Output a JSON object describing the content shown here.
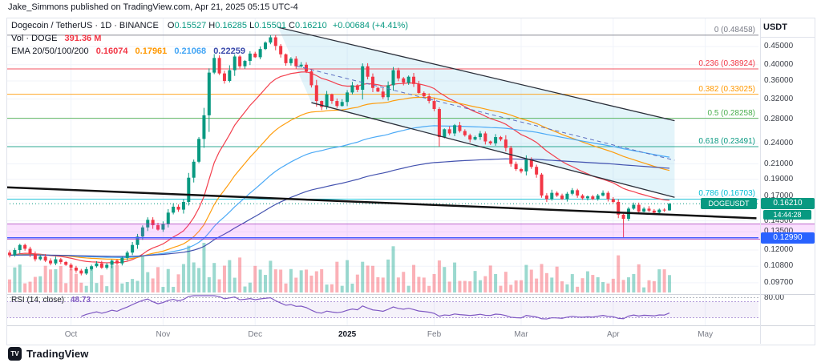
{
  "attribution": "Jake_Simmons published on TradingView.com, Apr 21, 2025 05:15 UTC-4",
  "header": {
    "symbol_title": "Dogecoin / TetherUS",
    "meta": "· 1D · BINANCE",
    "ohlc": {
      "o_label": "O",
      "o": "0.15527",
      "h_label": "H",
      "h": "0.16285",
      "l_label": "L",
      "l": "0.15501",
      "c_label": "C",
      "c": "0.16210",
      "change": "+0.00684 (+4.41%)"
    },
    "volume_label": "Vol · DOGE",
    "volume_value": "391.36 M",
    "ema_label": "EMA 20/50/100/200",
    "ema_values": [
      "0.16074",
      "0.17961",
      "0.21068",
      "0.22259"
    ]
  },
  "price_scale": {
    "currency": "USDT",
    "labels": [
      {
        "text": "0.45000",
        "price": 0.45
      },
      {
        "text": "0.40000",
        "price": 0.4
      },
      {
        "text": "0.36000",
        "price": 0.36
      },
      {
        "text": "0.32000",
        "price": 0.32
      },
      {
        "text": "0.28000",
        "price": 0.28
      },
      {
        "text": "0.24000",
        "price": 0.24
      },
      {
        "text": "0.21000",
        "price": 0.21
      },
      {
        "text": "0.19000",
        "price": 0.19
      },
      {
        "text": "0.17000",
        "price": 0.17
      },
      {
        "text": "0.14500",
        "price": 0.145
      },
      {
        "text": "0.13500",
        "price": 0.135
      },
      {
        "text": "0.12000",
        "price": 0.12
      },
      {
        "text": "0.10800",
        "price": 0.108
      },
      {
        "text": "0.09700",
        "price": 0.097
      }
    ],
    "last_price_badge": {
      "symbol": "DOGEUSDT",
      "price": "0.16210",
      "countdown": "14:44:28"
    },
    "support_badge": {
      "price": "0.12990"
    },
    "rsi_top_label": "80.00"
  },
  "fib_levels": [
    {
      "label": "0 (0.48458)",
      "price": 0.48458,
      "color": "#787b86"
    },
    {
      "label": "0.236 (0.38924)",
      "price": 0.38924,
      "color": "#f23645"
    },
    {
      "label": "0.382 (0.33025)",
      "price": 0.33025,
      "color": "#ff9800"
    },
    {
      "label": "0.5 (0.28258)",
      "price": 0.28258,
      "color": "#4caf50"
    },
    {
      "label": "0.618 (0.23491)",
      "price": 0.23491,
      "color": "#089981"
    },
    {
      "label": "0.786 (0.16703)",
      "price": 0.16703,
      "color": "#00bcd4"
    }
  ],
  "time_axis": [
    "Oct",
    "Nov",
    "Dec",
    "2025",
    "Feb",
    "Mar",
    "Apr",
    "May"
  ],
  "rsi_legend": {
    "label": "RSI (14, close)",
    "value": "48.73"
  },
  "watermark": {
    "text": "TradingView",
    "mark": "TV"
  },
  "chart_data": {
    "type": "candlestick+volume+rsi",
    "symbol": "DOGEUSDT",
    "exchange": "BINANCE",
    "interval": "1D",
    "x_range": [
      "late Sep 2024",
      "Apr 21 2025"
    ],
    "price_log_scale": {
      "top": 0.505,
      "bottom": 0.0925
    },
    "closes": [
      0.116,
      0.12,
      0.124,
      0.121,
      0.117,
      0.113,
      0.115,
      0.112,
      0.11,
      0.113,
      0.111,
      0.109,
      0.107,
      0.105,
      0.103,
      0.106,
      0.108,
      0.11,
      0.107,
      0.109,
      0.112,
      0.11,
      0.114,
      0.118,
      0.124,
      0.131,
      0.139,
      0.146,
      0.141,
      0.137,
      0.142,
      0.153,
      0.159,
      0.156,
      0.164,
      0.192,
      0.213,
      0.247,
      0.288,
      0.38,
      0.418,
      0.378,
      0.36,
      0.386,
      0.422,
      0.396,
      0.41,
      0.43,
      0.42,
      0.443,
      0.462,
      0.478,
      0.452,
      0.428,
      0.404,
      0.416,
      0.396,
      0.4,
      0.383,
      0.35,
      0.316,
      0.304,
      0.33,
      0.316,
      0.306,
      0.314,
      0.334,
      0.35,
      0.34,
      0.396,
      0.37,
      0.344,
      0.336,
      0.324,
      0.35,
      0.386,
      0.366,
      0.356,
      0.37,
      0.353,
      0.333,
      0.326,
      0.316,
      0.3,
      0.25,
      0.263,
      0.256,
      0.27,
      0.26,
      0.253,
      0.246,
      0.25,
      0.256,
      0.243,
      0.24,
      0.25,
      0.246,
      0.233,
      0.21,
      0.203,
      0.2,
      0.216,
      0.206,
      0.196,
      0.171,
      0.167,
      0.174,
      0.171,
      0.167,
      0.173,
      0.177,
      0.171,
      0.168,
      0.17,
      0.167,
      0.171,
      0.174,
      0.167,
      0.164,
      0.151,
      0.147,
      0.157,
      0.161,
      0.154,
      0.157,
      0.155,
      0.153,
      0.156,
      0.15527,
      0.1621
    ],
    "last_candle": {
      "open": 0.15527,
      "high": 0.16285,
      "low": 0.15501,
      "close": 0.1621
    },
    "overrides": [
      {
        "i": 51,
        "high": 0.48458
      },
      {
        "i": 120,
        "low": 0.1295
      },
      {
        "i": 129,
        "high": 0.16285,
        "low": 0.15501
      }
    ],
    "month_tick_indices": [
      12,
      30,
      48,
      66,
      83,
      100,
      118,
      136
    ],
    "emas": {
      "periods": [
        20,
        50,
        100,
        200
      ],
      "colors": [
        "#f23645",
        "#ff9800",
        "#42a5f5",
        "#3949ab"
      ],
      "display_values": [
        0.16074,
        0.17961,
        0.21068,
        0.22259
      ]
    },
    "rsi": {
      "period": 14,
      "last_value": 48.73,
      "band": [
        30,
        70
      ],
      "top_ref": 80,
      "color": "#7e57c2"
    },
    "levels": {
      "support_line": 0.1299,
      "support_color": "#2962ff",
      "zone": [
        0.13,
        0.1425
      ]
    },
    "fib_prices": [
      0.48458,
      0.38924,
      0.33025,
      0.28258,
      0.23491,
      0.16703
    ],
    "drawings": {
      "trendline": {
        "points": [
          [
            -1,
            0.1805
          ],
          [
            146,
            0.1475
          ]
        ],
        "color": "#111111",
        "width": 2.5,
        "dash": ""
      },
      "channel_upper": {
        "points": [
          [
            52.5,
            0.51
          ],
          [
            130,
            0.278
          ]
        ],
        "color": "#2a2e39",
        "width": 1.3,
        "dash": ""
      },
      "channel_lower": {
        "points": [
          [
            59,
            0.3127
          ],
          [
            130,
            0.169
          ]
        ],
        "color": "#2a2e39",
        "width": 1.3,
        "dash": ""
      },
      "channel_mid": {
        "points": [
          [
            56,
            0.397
          ],
          [
            130,
            0.215
          ]
        ],
        "color": "#5b6dc0",
        "width": 1,
        "dash": "5,4"
      }
    },
    "volume_display": "391.36 M"
  }
}
